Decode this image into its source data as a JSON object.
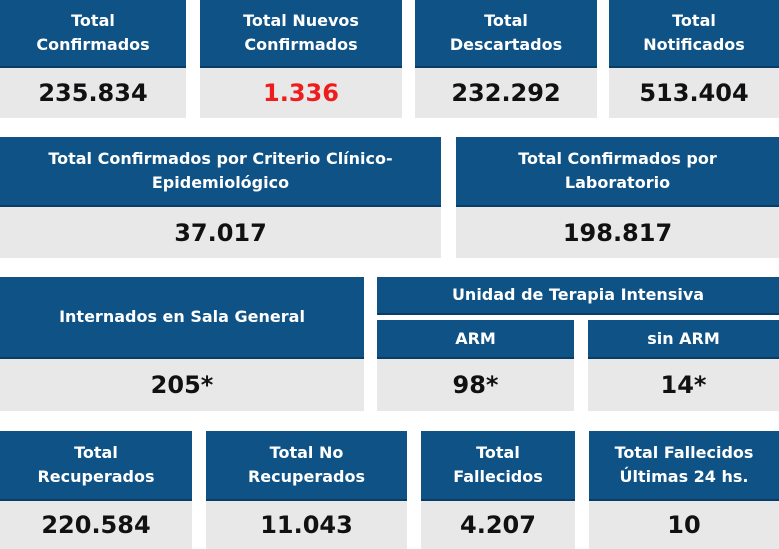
{
  "row1": {
    "total_confirmados": {
      "label": "Total\nConfirmados",
      "value": "235.834"
    },
    "total_nuevos_confirmados": {
      "label": "Total Nuevos\nConfirmados",
      "value": "1.336"
    },
    "total_descartados": {
      "label": "Total\nDescartados",
      "value": "232.292"
    },
    "total_notificados": {
      "label": "Total\nNotificados",
      "value": "513.404"
    }
  },
  "row2": {
    "criterio_clinico": {
      "label": "Total Confirmados por Criterio Clínico-\nEpidemiológico",
      "value": "37.017"
    },
    "laboratorio": {
      "label": "Total Confirmados por\nLaboratorio",
      "value": "198.817"
    }
  },
  "row3": {
    "internados": {
      "label": "Internados en Sala General",
      "value": "205*"
    },
    "uti_title": "Unidad de Terapia Intensiva",
    "arm": {
      "label": "ARM",
      "value": "98*"
    },
    "sin_arm": {
      "label": "sin ARM",
      "value": "14*"
    }
  },
  "row4": {
    "recuperados": {
      "label": "Total\nRecuperados",
      "value": "220.584"
    },
    "no_recuperados": {
      "label": "Total No\nRecuperados",
      "value": "11.043"
    },
    "fallecidos": {
      "label": "Total\nFallecidos",
      "value": "4.207"
    },
    "fallecidos_24h": {
      "label": "Total Fallecidos\nÚltimas 24 hs.",
      "value": "10"
    }
  },
  "colors": {
    "header": "#0e5286",
    "value_bg": "#e8e8e8",
    "highlight": "#ee1c1c"
  }
}
